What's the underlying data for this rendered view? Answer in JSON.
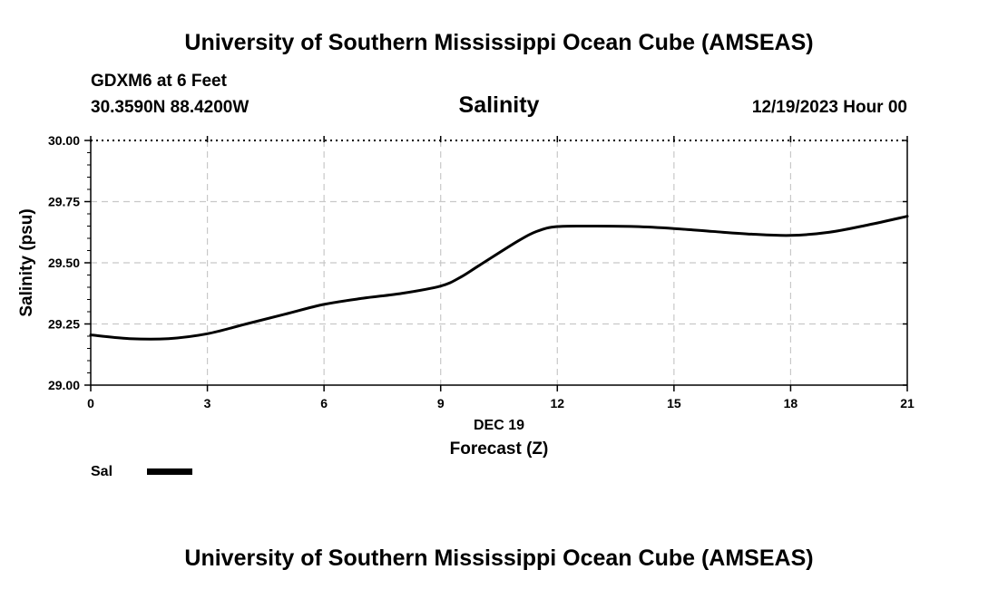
{
  "header": {
    "top_title": "University of Southern Mississippi Ocean Cube (AMSEAS)",
    "station": "GDXM6 at 6 Feet",
    "coordinates": "30.3590N  88.4200W",
    "variable": "Salinity",
    "run_time": "12/19/2023 Hour 00"
  },
  "footer": {
    "bottom_title": "University of Southern Mississippi Ocean Cube (AMSEAS)"
  },
  "legend": {
    "label": "Sal"
  },
  "colors": {
    "line": "#000000",
    "grid": "#c8c8c8",
    "background": "#ffffff"
  },
  "chart_data": {
    "type": "line",
    "title": "Salinity",
    "xlabel": "Forecast (Z)",
    "xlabel_date": "DEC 19",
    "ylabel": "Salinity (psu)",
    "xlim": [
      0,
      21
    ],
    "ylim": [
      29.0,
      30.0
    ],
    "xticks": [
      0,
      3,
      6,
      9,
      12,
      15,
      18,
      21
    ],
    "xtick_labels": [
      "0",
      "3",
      "6",
      "9",
      "12",
      "15",
      "18",
      "21"
    ],
    "yticks": [
      29.0,
      29.25,
      29.5,
      29.75,
      30.0
    ],
    "ytick_labels": [
      "29.00",
      "29.25",
      "29.50",
      "29.75",
      "30.00"
    ],
    "grid": true,
    "series": [
      {
        "name": "Sal",
        "x": [
          0,
          1,
          2,
          3,
          4,
          5,
          6,
          7,
          8,
          9,
          9.5,
          10,
          11,
          11.5,
          12,
          13,
          14,
          15,
          16,
          17,
          18,
          19,
          20,
          21
        ],
        "values": [
          29.205,
          29.19,
          29.19,
          29.21,
          29.25,
          29.29,
          29.33,
          29.355,
          29.375,
          29.405,
          29.44,
          29.49,
          29.59,
          29.63,
          29.648,
          29.65,
          29.648,
          29.64,
          29.628,
          29.617,
          29.612,
          29.625,
          29.655,
          29.69
        ]
      }
    ]
  }
}
